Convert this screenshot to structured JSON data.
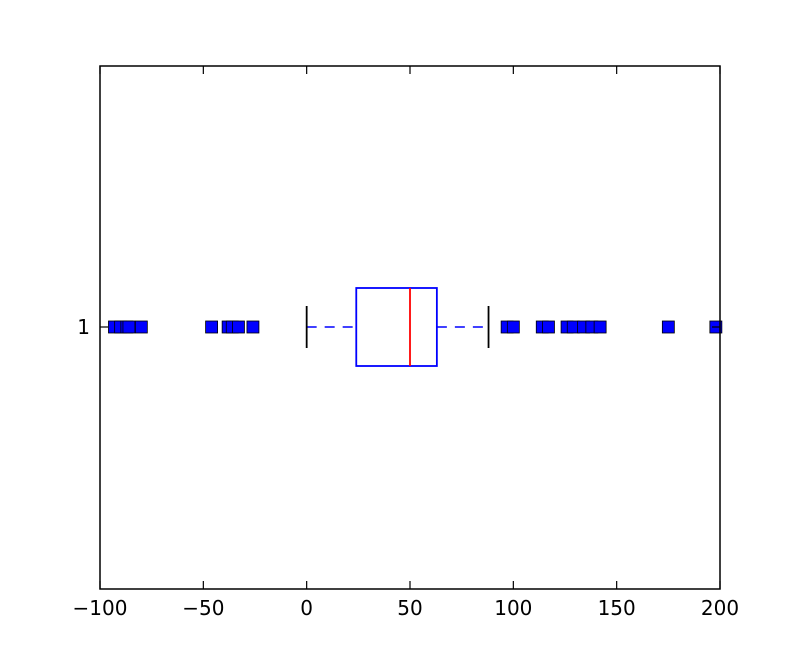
{
  "chart_data": {
    "type": "boxplot",
    "orientation": "horizontal",
    "xlim": [
      -100,
      200
    ],
    "xticks": [
      -100,
      -50,
      0,
      50,
      100,
      150,
      200
    ],
    "xtick_labels": [
      "−100",
      "−50",
      "0",
      "50",
      "100",
      "150",
      "200"
    ],
    "categories": [
      "1"
    ],
    "box": {
      "whisker_low": 0,
      "q1": 24,
      "median": 50,
      "q3": 63,
      "whisker_high": 88
    },
    "outliers": [
      -93,
      -90,
      -87,
      -86,
      -80,
      -46,
      -38,
      -36,
      -33,
      -26,
      97,
      100,
      114,
      117,
      126,
      129,
      134,
      138,
      142,
      175,
      198
    ],
    "colors": {
      "box": "#0000ff",
      "median": "#ff0000",
      "whisker": "#0000ff",
      "cap": "#000000",
      "outlier": "#0000ff"
    }
  }
}
